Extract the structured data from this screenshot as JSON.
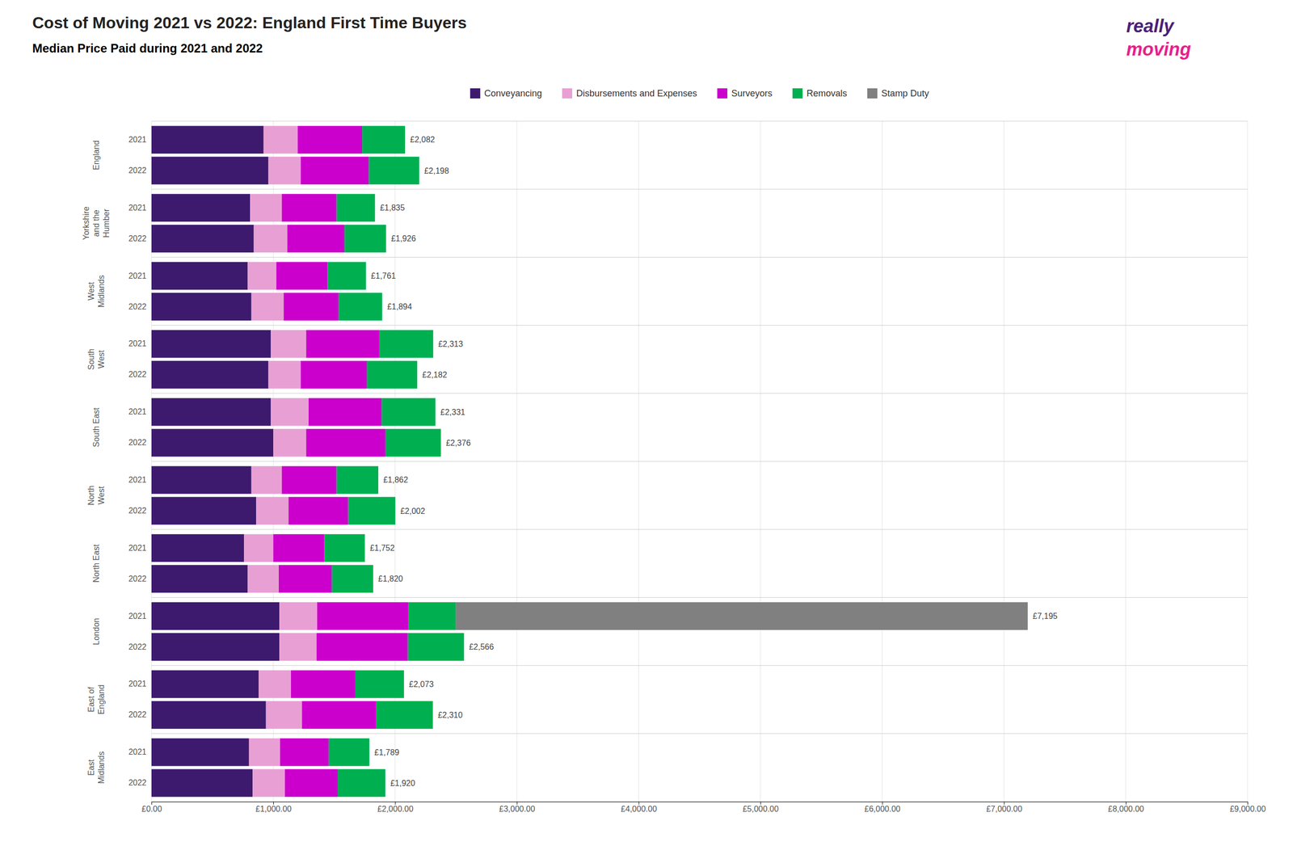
{
  "chart_data": {
    "type": "bar",
    "orientation": "horizontal",
    "stacked": true,
    "grid": true,
    "legend": "top",
    "title": "Cost of Moving 2021 vs 2022: England First Time Buyers",
    "subtitle": "Median Price Paid during 2021 and 2022",
    "groups": [
      "England",
      "Yorkshire\nand the\nHumber",
      "West\nMidlands",
      "South\nWest",
      "South East",
      "North\nWest",
      "North East",
      "London",
      "East of\nEngland",
      "East\nMidlands"
    ],
    "categories": [
      "2021",
      "2022",
      "2021",
      "2022",
      "2021",
      "2022",
      "2021",
      "2022",
      "2021",
      "2022",
      "2021",
      "2022",
      "2021",
      "2022",
      "2021",
      "2022",
      "2021",
      "2022",
      "2021",
      "2022"
    ],
    "series": [
      {
        "name": "Conveyancing",
        "color": "#3d1a6e",
        "values": [
          920,
          960,
          810,
          840,
          790,
          820,
          980,
          960,
          980,
          1000,
          820,
          860,
          760,
          790,
          1050,
          1050,
          880,
          940,
          800,
          830
        ]
      },
      {
        "name": "Disbursements and Expenses",
        "color": "#e8a0d4",
        "values": [
          280,
          265,
          260,
          275,
          235,
          265,
          290,
          265,
          310,
          270,
          250,
          265,
          240,
          255,
          310,
          305,
          265,
          295,
          255,
          265
        ]
      },
      {
        "name": "Surveyors",
        "color": "#cc00cc",
        "values": [
          530,
          560,
          450,
          470,
          420,
          450,
          600,
          545,
          600,
          650,
          450,
          490,
          420,
          435,
          750,
          750,
          530,
          610,
          400,
          435
        ]
      },
      {
        "name": "Removals",
        "color": "#00b050",
        "values": [
          352,
          413,
          315,
          341,
          316,
          359,
          443,
          412,
          441,
          456,
          342,
          387,
          332,
          340,
          390,
          461,
          398,
          465,
          334,
          390
        ]
      },
      {
        "name": "Stamp Duty",
        "color": "#808080",
        "values": [
          0,
          0,
          0,
          0,
          0,
          0,
          0,
          0,
          0,
          0,
          0,
          0,
          0,
          0,
          4695,
          0,
          0,
          0,
          0,
          0
        ]
      }
    ],
    "totals": [
      2082,
      2198,
      1835,
      1926,
      1761,
      1894,
      2313,
      2182,
      2331,
      2376,
      1862,
      2002,
      1752,
      1820,
      7195,
      2566,
      2073,
      2310,
      1789,
      1920
    ],
    "total_labels": [
      "£2,082",
      "£2,198",
      "£1,835",
      "£1,926",
      "£1,761",
      "£1,894",
      "£2,313",
      "£2,182",
      "£2,331",
      "£2,376",
      "£1,862",
      "£2,002",
      "£1,752",
      "£1,820",
      "£7,195",
      "£2,566",
      "£2,073",
      "£2,310",
      "£1,789",
      "£1,920"
    ],
    "xlim": [
      0,
      9000
    ],
    "xticks": [
      {
        "value": 0,
        "label": "£0.00"
      },
      {
        "value": 1000,
        "label": "£1,000.00"
      },
      {
        "value": 2000,
        "label": "£2,000.00"
      },
      {
        "value": 3000,
        "label": "£3,000.00"
      },
      {
        "value": 4000,
        "label": "£4,000.00"
      },
      {
        "value": 5000,
        "label": "£5,000.00"
      },
      {
        "value": 6000,
        "label": "£6,000.00"
      },
      {
        "value": 7000,
        "label": "£7,000.00"
      },
      {
        "value": 8000,
        "label": "£8,000.00"
      },
      {
        "value": 9000,
        "label": "£9,000.00"
      }
    ],
    "annotations": [
      {
        "text": "really",
        "color": "#4b2076"
      },
      {
        "text": "moving",
        "color": "#e91e8c"
      }
    ]
  }
}
